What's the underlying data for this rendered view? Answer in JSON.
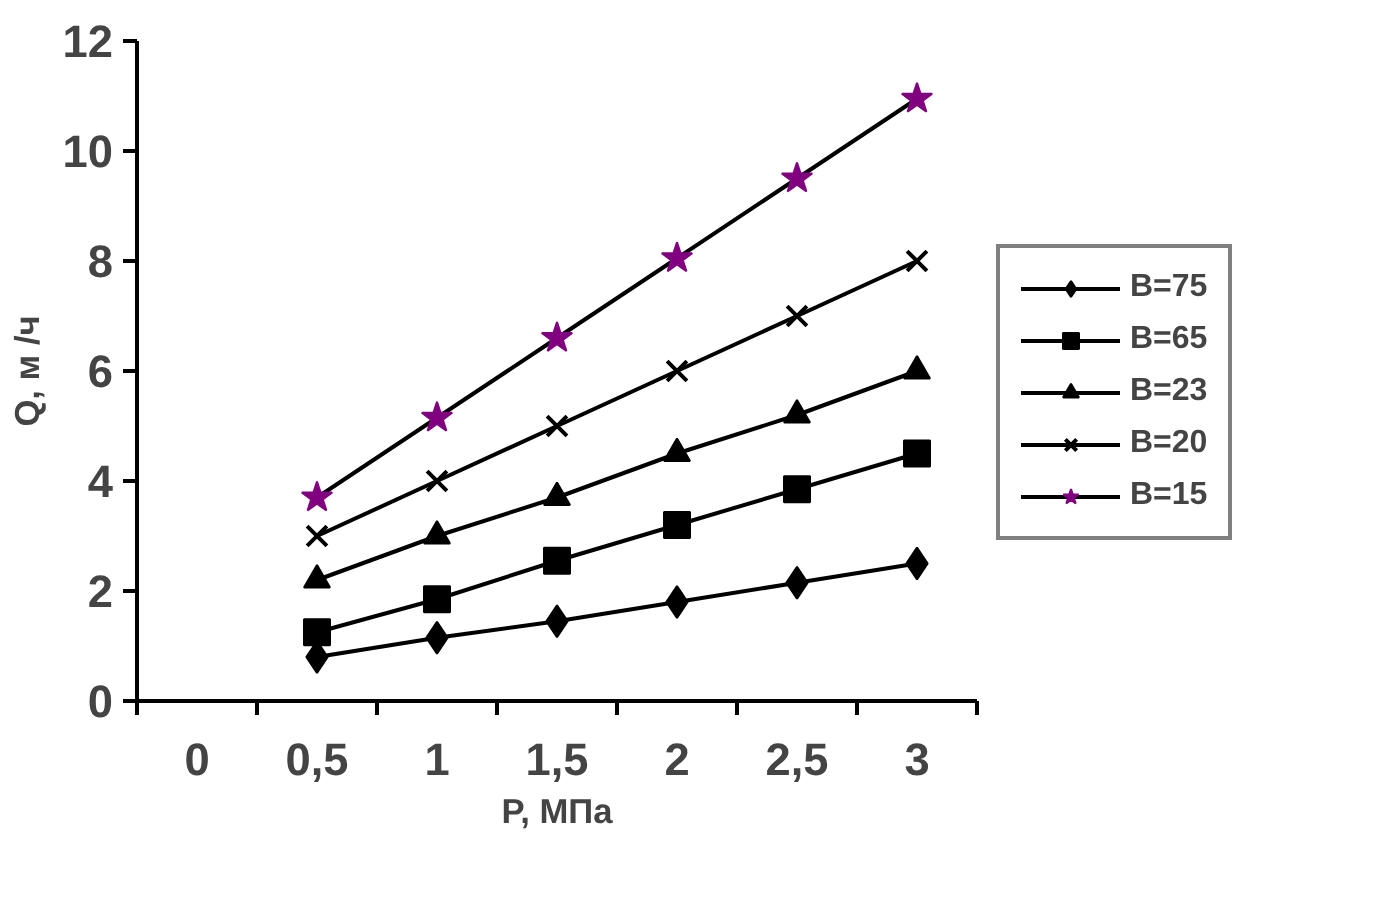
{
  "chart_data": {
    "type": "line",
    "xlabel": "P, МПа",
    "ylabel": "Q, м /ч",
    "categories": [
      "0",
      "0,5",
      "1",
      "1,5",
      "2",
      "2,5",
      "3"
    ],
    "ylim": [
      0,
      12
    ],
    "yticks": [
      0,
      2,
      4,
      6,
      8,
      10,
      12
    ],
    "grid": false,
    "legend": "right",
    "series": [
      {
        "name": "B=75",
        "color": "#000000",
        "marker": "diamond",
        "values": [
          null,
          0.8,
          1.15,
          1.45,
          1.8,
          2.15,
          2.5
        ]
      },
      {
        "name": "B=65",
        "color": "#000000",
        "marker": "square",
        "values": [
          null,
          1.25,
          1.85,
          2.55,
          3.2,
          3.85,
          4.5
        ]
      },
      {
        "name": "B=23",
        "color": "#000000",
        "marker": "triangle",
        "values": [
          null,
          2.2,
          3.0,
          3.7,
          4.5,
          5.2,
          6.0
        ]
      },
      {
        "name": "B=20",
        "color": "#000000",
        "marker": "cross",
        "values": [
          null,
          3.0,
          4.0,
          5.0,
          6.0,
          7.0,
          8.0
        ]
      },
      {
        "name": "B=15",
        "color": "#800080",
        "marker": "star",
        "values": [
          null,
          3.7,
          5.15,
          6.6,
          8.05,
          9.5,
          10.95
        ]
      }
    ]
  }
}
